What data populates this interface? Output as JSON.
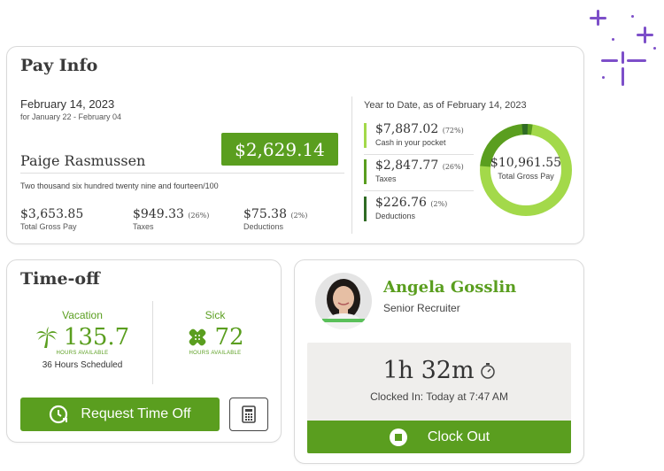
{
  "pay_info": {
    "title": "Pay Info",
    "date": "February 14, 2023",
    "period": "for January 22 - February 04",
    "employee_name": "Paige Rasmussen",
    "net_amount": "$2,629.14",
    "amount_words": "Two thousand six hundred twenty nine and fourteen/100",
    "stats": [
      {
        "value": "$3,653.85",
        "pct": "",
        "label": "Total Gross Pay"
      },
      {
        "value": "$949.33",
        "pct": "(26%)",
        "label": "Taxes"
      },
      {
        "value": "$75.38",
        "pct": "(2%)",
        "label": "Deductions"
      }
    ],
    "ytd_heading": "Year to Date, as of February 14, 2023",
    "ytd_items": [
      {
        "value": "$7,887.02",
        "pct": "(72%)",
        "label": "Cash in your pocket",
        "color": "#a3d94a"
      },
      {
        "value": "$2,847.77",
        "pct": "(26%)",
        "label": "Taxes",
        "color": "#5a9e1f"
      },
      {
        "value": "$226.76",
        "pct": "(2%)",
        "label": "Deductions",
        "color": "#2f6b24"
      }
    ],
    "donut_value": "$10,961.55",
    "donut_label": "Total Gross Pay"
  },
  "time_off": {
    "title": "Time-off",
    "vacation_label": "Vacation",
    "vacation_hours": "135.7",
    "vacation_hours_label": "HOURS AVAILABLE",
    "scheduled": "36 Hours Scheduled",
    "sick_label": "Sick",
    "sick_hours": "72",
    "sick_hours_label": "HOURS AVAILABLE",
    "request_button": "Request Time Off"
  },
  "recruiter": {
    "name": "Angela Gosslin",
    "role": "Senior Recruiter",
    "elapsed": "1h 32m",
    "clocked_in": "Clocked In: Today at 7:47 AM",
    "clock_out_button": "Clock Out"
  },
  "colors": {
    "accent": "#5a9e1f",
    "light_green": "#a3d94a",
    "dark_green": "#2f6b24",
    "sparkle": "#7d4fc9"
  },
  "icons": [
    "palm-tree-icon",
    "bandage-icon",
    "clock-arrow-icon",
    "calculator-icon",
    "stopwatch-icon",
    "stop-icon"
  ]
}
